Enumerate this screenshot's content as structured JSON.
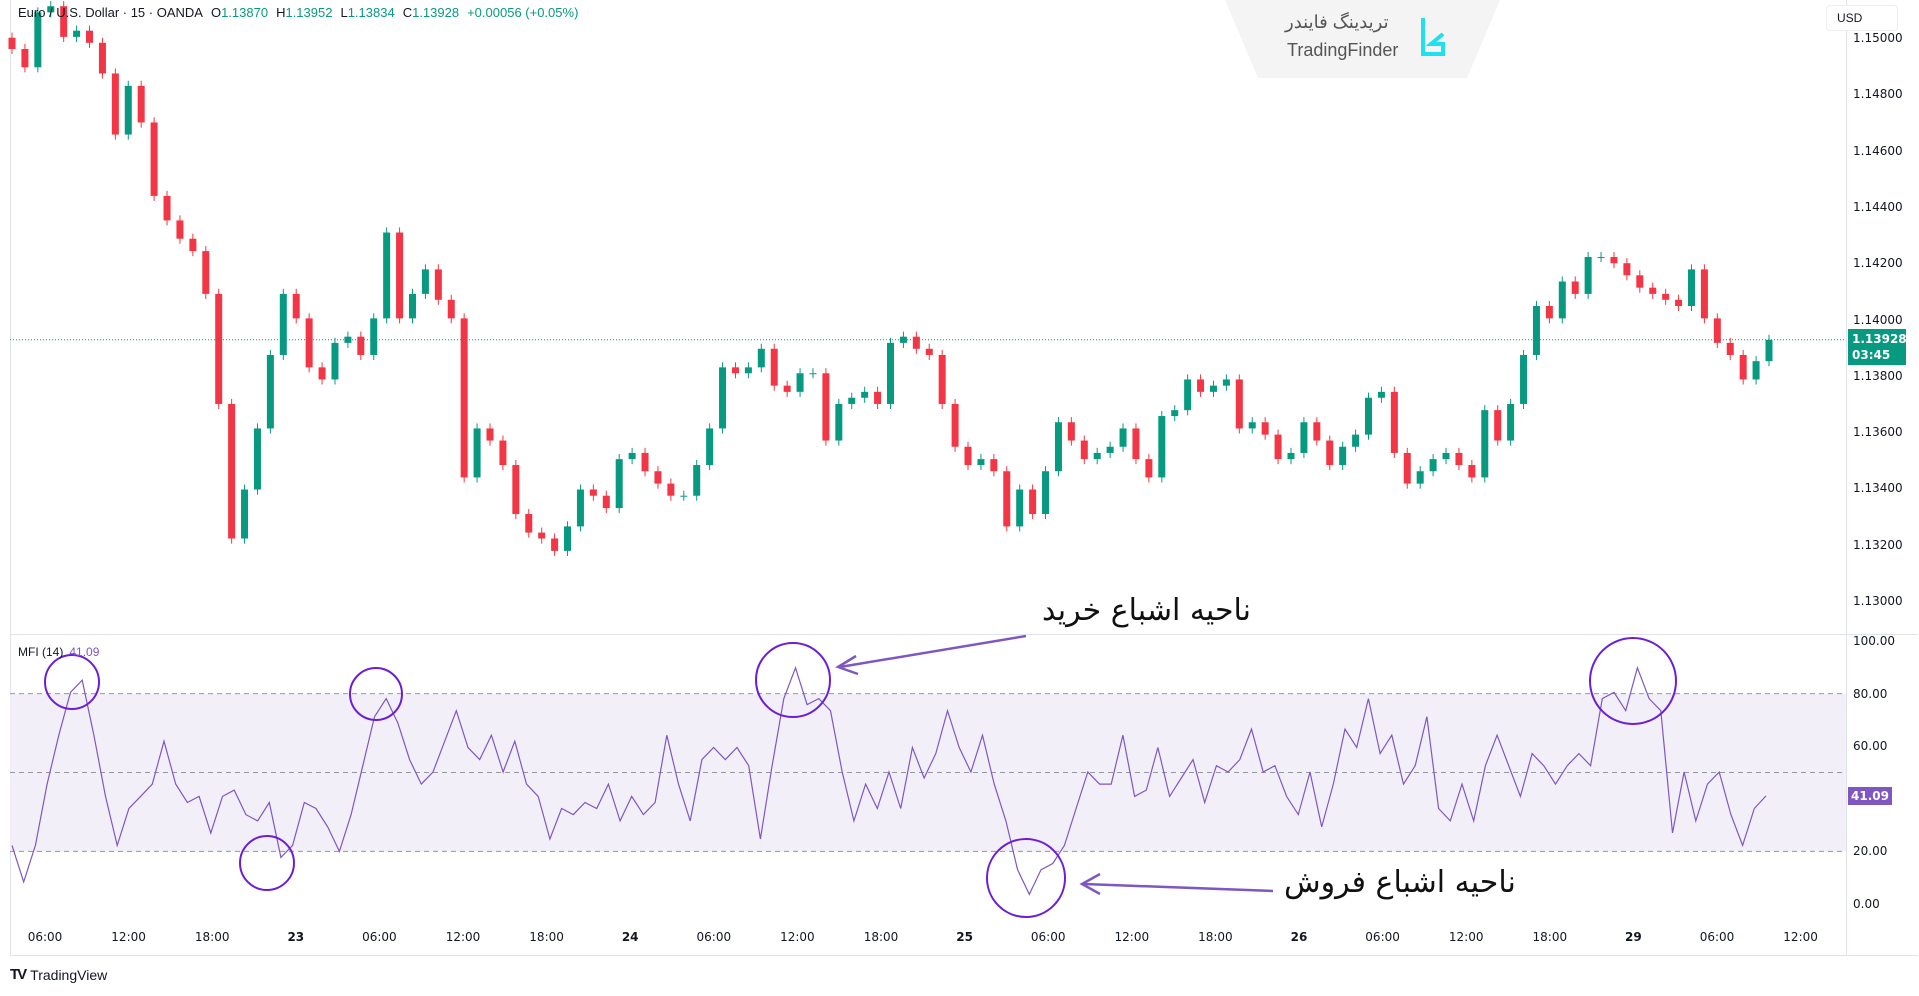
{
  "header": {
    "symbol": "Euro / U.S. Dollar · 15 · OANDA",
    "o_label": "O",
    "o": "1.13870",
    "h_label": "H",
    "h": "1.13952",
    "l_label": "L",
    "l": "1.13834",
    "c_label": "C",
    "c": "1.13928",
    "change": "+0.00056 (+0.05%)"
  },
  "currency": "USD",
  "current_price": {
    "price": "1.13928",
    "countdown": "03:45"
  },
  "watermark": {
    "fa": "تریدینگ فایندر",
    "en": "TradingFinder"
  },
  "footer": {
    "brand": "TradingView"
  },
  "annotations": {
    "overbought": "ناحیه اشباع خرید",
    "oversold": "ناحیه اشباع فروش"
  },
  "colors": {
    "up": "#089981",
    "down": "#f23645",
    "mfi_line": "#7e57c2",
    "mfi_band": "#f3eff9",
    "highlight_circle": "#6a1fd6"
  },
  "chart_data": [
    {
      "type": "candlestick",
      "title": "Euro / U.S. Dollar · 15 · OANDA",
      "price_ticks": [
        "1.15000",
        "1.14800",
        "1.14600",
        "1.14400",
        "1.14200",
        "1.14000",
        "1.13800",
        "1.13600",
        "1.13400",
        "1.13200",
        "1.13000"
      ],
      "ylim": [
        1.13,
        1.15
      ],
      "time_ticks": [
        "06:00",
        "12:00",
        "18:00",
        "23",
        "06:00",
        "12:00",
        "18:00",
        "24",
        "06:00",
        "12:00",
        "18:00",
        "25",
        "06:00",
        "12:00",
        "18:00",
        "26",
        "06:00",
        "12:00",
        "18:00",
        "29",
        "06:00",
        "12:00"
      ],
      "close": [
        1.14961,
        1.14896,
        1.15091,
        1.15113,
        1.15004,
        1.15026,
        1.14983,
        1.14874,
        1.14657,
        1.1483,
        1.147,
        1.14439,
        1.14352,
        1.14287,
        1.14243,
        1.14091,
        1.137,
        1.13222,
        1.13396,
        1.13613,
        1.13874,
        1.14091,
        1.14004,
        1.1383,
        1.13787,
        1.13917,
        1.13939,
        1.13874,
        1.14004,
        1.14309,
        1.14004,
        1.14091,
        1.14178,
        1.1407,
        1.14004,
        1.13439,
        1.13613,
        1.1357,
        1.13483,
        1.13309,
        1.13243,
        1.13222,
        1.13178,
        1.13265,
        1.13396,
        1.13374,
        1.1333,
        1.13504,
        1.13526,
        1.13461,
        1.13417,
        1.13374,
        1.13374,
        1.13483,
        1.13613,
        1.1383,
        1.13809,
        1.1383,
        1.13896,
        1.13765,
        1.13743,
        1.13809,
        1.13809,
        1.1357,
        1.137,
        1.13722,
        1.13743,
        1.137,
        1.13917,
        1.13939,
        1.13896,
        1.13874,
        1.137,
        1.13548,
        1.13483,
        1.13504,
        1.13461,
        1.13265,
        1.13396,
        1.13309,
        1.13461,
        1.13635,
        1.1357,
        1.13504,
        1.13526,
        1.13548,
        1.13613,
        1.13504,
        1.13439,
        1.13657,
        1.13678,
        1.13787,
        1.13743,
        1.13765,
        1.13787,
        1.13613,
        1.13635,
        1.13591,
        1.13504,
        1.13526,
        1.13635,
        1.1357,
        1.13483,
        1.13548,
        1.13591,
        1.13722,
        1.13743,
        1.13526,
        1.13417,
        1.13461,
        1.13504,
        1.13526,
        1.13483,
        1.13439,
        1.13678,
        1.1357,
        1.137,
        1.13874,
        1.14048,
        1.14004,
        1.14135,
        1.14091,
        1.14222,
        1.14222,
        1.142,
        1.14157,
        1.14113,
        1.14091,
        1.1407,
        1.14048,
        1.14178,
        1.14004,
        1.13917,
        1.13874,
        1.13787,
        1.13852,
        1.13928
      ],
      "last_price": 1.13928
    },
    {
      "type": "line",
      "title": "MFI (14)",
      "last_value": "41.09",
      "ticks": [
        "100.00",
        "80.00",
        "60.00",
        "20.00",
        "0.00"
      ],
      "ylim": [
        0,
        100
      ],
      "bands": {
        "upper": 80,
        "middle": 50,
        "lower": 20
      },
      "values": [
        22.3,
        8.4,
        22.3,
        45.6,
        64.2,
        80.5,
        85.1,
        64.2,
        40.9,
        22.3,
        36.3,
        40.9,
        45.6,
        61.9,
        45.6,
        38.6,
        40.9,
        27.0,
        40.9,
        43.3,
        34.0,
        31.6,
        38.6,
        17.7,
        22.3,
        38.6,
        36.3,
        29.3,
        20.0,
        34.0,
        52.6,
        71.2,
        78.1,
        68.8,
        54.9,
        45.6,
        50.2,
        61.9,
        73.5,
        59.5,
        54.9,
        64.2,
        50.2,
        61.9,
        45.6,
        40.9,
        24.7,
        36.3,
        34.0,
        38.6,
        36.3,
        45.6,
        31.6,
        40.9,
        34.0,
        38.6,
        64.2,
        45.6,
        31.6,
        54.9,
        59.5,
        54.9,
        59.5,
        52.6,
        24.7,
        52.6,
        78.1,
        89.8,
        75.8,
        78.1,
        73.5,
        50.2,
        31.6,
        45.6,
        36.3,
        50.2,
        36.3,
        59.5,
        47.9,
        57.2,
        73.5,
        59.5,
        50.2,
        64.2,
        45.6,
        31.6,
        13.0,
        3.7,
        13.0,
        15.4,
        22.3,
        36.3,
        50.2,
        45.6,
        45.6,
        64.2,
        40.9,
        43.3,
        59.5,
        40.9,
        47.9,
        54.9,
        38.6,
        52.6,
        50.2,
        54.9,
        66.5,
        50.2,
        52.6,
        40.9,
        34.0,
        50.2,
        29.3,
        45.6,
        66.5,
        59.5,
        78.1,
        57.2,
        64.2,
        45.6,
        52.6,
        71.2,
        36.3,
        31.6,
        45.6,
        31.6,
        52.6,
        64.2,
        52.6,
        40.9,
        57.2,
        52.6,
        45.6,
        52.6,
        57.2,
        52.6,
        78.1,
        80.5,
        73.5,
        89.8,
        78.1,
        73.5,
        27.0,
        50.2,
        31.6,
        45.6,
        50.2,
        34.0,
        22.3,
        36.3,
        41.09
      ]
    }
  ]
}
